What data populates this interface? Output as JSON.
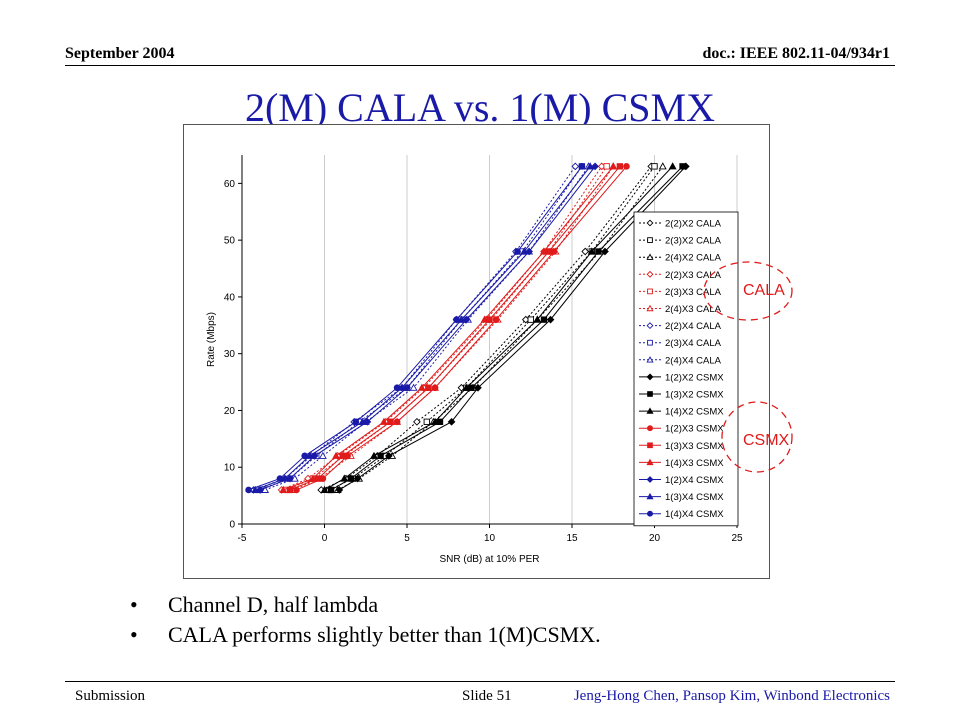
{
  "header": {
    "date": "September 2004",
    "doc": "doc.: IEEE 802.11-04/934r1"
  },
  "title": "2(M) CALA vs. 1(M) CSMX",
  "bullets": [
    "Channel D, half lambda",
    "CALA performs slightly better than 1(M)CSMX."
  ],
  "footer": {
    "left": "Submission",
    "center": "Slide 51",
    "right": "Jeng-Hong Chen, Pansop Kim, Winbond Electronics"
  },
  "annotations": {
    "cala": "CALA",
    "csmx": "CSMX"
  },
  "colors": {
    "title": "#1a1aa8",
    "annotation": "#e01b1b",
    "black": "#000000",
    "red": "#e01b1b",
    "blue": "#1a1aa8"
  },
  "chart_data": {
    "type": "line",
    "xlabel": "SNR (dB) at 10% PER",
    "ylabel": "Rate (Mbps)",
    "xlim": [
      -5,
      25
    ],
    "ylim": [
      0,
      65
    ],
    "xticks": [
      -5,
      0,
      5,
      10,
      15,
      20,
      25
    ],
    "yticks": [
      0,
      10,
      20,
      30,
      40,
      50,
      60
    ],
    "grid": "vertical",
    "legend_position": "right",
    "rates": [
      6,
      8,
      12,
      18,
      24,
      36,
      48,
      63
    ],
    "series": [
      {
        "name": "2(2)X2 CALA",
        "color": "black",
        "style": "dotted",
        "marker": "diamond-open",
        "x": [
          -0.2,
          1.3,
          3.2,
          5.6,
          8.3,
          12.2,
          15.8,
          19.8
        ]
      },
      {
        "name": "2(3)X2 CALA",
        "color": "black",
        "style": "dotted",
        "marker": "square-open",
        "x": [
          0.3,
          1.7,
          3.7,
          6.2,
          8.6,
          12.5,
          16.2,
          20.0
        ]
      },
      {
        "name": "2(4)X2 CALA",
        "color": "black",
        "style": "dotted",
        "marker": "triangle-open",
        "x": [
          0.8,
          2.1,
          4.1,
          6.6,
          9.0,
          12.9,
          16.7,
          20.5
        ]
      },
      {
        "name": "2(2)X3 CALA",
        "color": "red",
        "style": "dotted",
        "marker": "diamond-open",
        "x": [
          -2.6,
          -1.0,
          0.8,
          3.7,
          6.0,
          9.8,
          13.3,
          16.8
        ]
      },
      {
        "name": "2(3)X3 CALA",
        "color": "red",
        "style": "dotted",
        "marker": "square-open",
        "x": [
          -2.3,
          -0.7,
          1.2,
          4.0,
          6.3,
          10.1,
          13.6,
          17.1
        ]
      },
      {
        "name": "2(4)X3 CALA",
        "color": "red",
        "style": "dotted",
        "marker": "triangle-open",
        "x": [
          -1.9,
          -0.3,
          1.6,
          4.4,
          6.7,
          10.5,
          14.0,
          17.5
        ]
      },
      {
        "name": "2(2)X4 CALA",
        "color": "blue",
        "style": "dotted",
        "marker": "diamond-open",
        "x": [
          -4.3,
          -2.4,
          -0.8,
          1.8,
          4.7,
          8.0,
          11.6,
          15.2
        ]
      },
      {
        "name": "2(3)X4 CALA",
        "color": "blue",
        "style": "dotted",
        "marker": "square-open",
        "x": [
          -4.0,
          -2.1,
          -0.5,
          2.1,
          5.0,
          8.3,
          12.0,
          15.6
        ]
      },
      {
        "name": "2(4)X4 CALA",
        "color": "blue",
        "style": "dotted",
        "marker": "triangle-open",
        "x": [
          -3.6,
          -1.8,
          -0.1,
          2.5,
          5.4,
          8.7,
          12.4,
          16.0
        ]
      },
      {
        "name": "1(2)X2 CSMX",
        "color": "black",
        "style": "solid",
        "marker": "diamond",
        "x": [
          0.9,
          2.0,
          3.9,
          7.7,
          9.3,
          13.7,
          17.0,
          21.9
        ]
      },
      {
        "name": "1(3)X2 CSMX",
        "color": "black",
        "style": "solid",
        "marker": "square",
        "x": [
          0.4,
          1.6,
          3.4,
          7.0,
          8.9,
          13.3,
          16.6,
          21.7
        ]
      },
      {
        "name": "1(4)X2 CSMX",
        "color": "black",
        "style": "solid",
        "marker": "triangle",
        "x": [
          0.0,
          1.2,
          3.0,
          6.7,
          8.6,
          12.9,
          16.2,
          21.1
        ]
      },
      {
        "name": "1(2)X3 CSMX",
        "color": "red",
        "style": "solid",
        "marker": "circle",
        "x": [
          -1.7,
          -0.1,
          1.4,
          4.4,
          6.7,
          10.4,
          13.9,
          18.3
        ]
      },
      {
        "name": "1(3)X3 CSMX",
        "color": "red",
        "style": "solid",
        "marker": "square",
        "x": [
          -2.1,
          -0.4,
          1.1,
          4.0,
          6.3,
          10.0,
          13.6,
          17.9
        ]
      },
      {
        "name": "1(4)X3 CSMX",
        "color": "red",
        "style": "solid",
        "marker": "triangle",
        "x": [
          -2.5,
          -0.7,
          0.7,
          3.6,
          5.9,
          9.7,
          13.3,
          17.5
        ]
      },
      {
        "name": "1(2)X4 CSMX",
        "color": "blue",
        "style": "solid",
        "marker": "diamond",
        "x": [
          -3.9,
          -2.1,
          -0.6,
          2.6,
          5.0,
          8.6,
          12.4,
          16.4
        ]
      },
      {
        "name": "1(3)X4 CSMX",
        "color": "blue",
        "style": "solid",
        "marker": "triangle",
        "x": [
          -4.2,
          -2.4,
          -0.9,
          2.3,
          4.7,
          8.3,
          12.1,
          16.1
        ]
      },
      {
        "name": "1(4)X4 CSMX",
        "color": "blue",
        "style": "solid",
        "marker": "circle",
        "x": [
          -4.6,
          -2.7,
          -1.2,
          1.9,
          4.4,
          8.0,
          11.7,
          15.6
        ]
      }
    ]
  }
}
